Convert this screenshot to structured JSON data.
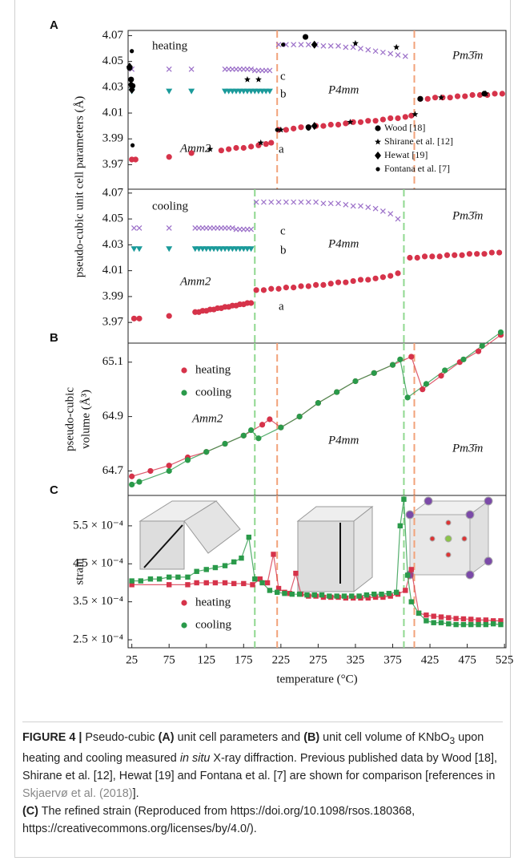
{
  "chart_data": [
    {
      "type": "scatter",
      "panel": "A",
      "ylabel": "pseudo-cubic unit cell parameters (Å)",
      "xlim": [
        20,
        527
      ],
      "ylim": [
        3.951,
        4.074
      ],
      "yticks": [
        3.97,
        3.99,
        4.01,
        4.03,
        4.05,
        4.07
      ],
      "annotations": [
        "heating",
        "Amm2",
        "P4mm",
        "Pm3̄m",
        "c",
        "b",
        "a"
      ],
      "legend": "lower right",
      "vlines": [
        {
          "x": 220,
          "color": "#f2a27a"
        },
        {
          "x": 404,
          "color": "#f2a27a"
        }
      ],
      "series": [
        {
          "marker": "circle",
          "color": "#d6334a",
          "x": [
            25,
            30,
            75,
            105,
            145,
            155,
            165,
            175,
            185,
            195,
            205,
            212,
            222,
            232,
            242,
            252,
            262,
            272,
            282,
            292,
            302,
            312,
            322,
            332,
            342,
            352,
            362,
            372,
            382,
            392,
            400,
            412,
            422,
            432,
            442,
            452,
            462,
            472,
            482,
            492,
            502,
            512,
            522
          ],
          "values": [
            3.974,
            3.974,
            3.976,
            3.979,
            3.981,
            3.982,
            3.983,
            3.983,
            3.984,
            3.985,
            3.986,
            3.987,
            3.997,
            3.997,
            3.998,
            3.999,
            3.999,
            4.0,
            4.0,
            4.001,
            4.001,
            4.002,
            4.003,
            4.003,
            4.004,
            4.004,
            4.005,
            4.006,
            4.006,
            4.007,
            4.008,
            4.021,
            4.021,
            4.022,
            4.022,
            4.022,
            4.023,
            4.023,
            4.024,
            4.024,
            4.024,
            4.025,
            4.025
          ]
        },
        {
          "marker": "triangle",
          "color": "#1a9a9a",
          "x": [
            25,
            75,
            105,
            150,
            155,
            160,
            165,
            170,
            175,
            180,
            185,
            190,
            195,
            200,
            205,
            210
          ],
          "values": [
            4.027,
            4.027,
            4.027,
            4.027,
            4.027,
            4.027,
            4.027,
            4.027,
            4.027,
            4.027,
            4.027,
            4.027,
            4.027,
            4.027,
            4.027,
            4.027
          ]
        },
        {
          "marker": "cross",
          "color": "#9b6fc8",
          "x": [
            25,
            75,
            105,
            150,
            155,
            160,
            165,
            170,
            175,
            180,
            185,
            190,
            195,
            200,
            205,
            210,
            222,
            232,
            242,
            252,
            262,
            272,
            282,
            292,
            302,
            312,
            322,
            332,
            342,
            352,
            362,
            372,
            382,
            392
          ],
          "values": [
            4.044,
            4.044,
            4.044,
            4.044,
            4.044,
            4.044,
            4.044,
            4.044,
            4.044,
            4.044,
            4.044,
            4.043,
            4.043,
            4.043,
            4.043,
            4.043,
            4.063,
            4.063,
            4.063,
            4.063,
            4.063,
            4.063,
            4.062,
            4.062,
            4.062,
            4.061,
            4.061,
            4.06,
            4.059,
            4.058,
            4.057,
            4.056,
            4.055,
            4.054
          ]
        },
        {
          "name": "Wood [18]",
          "marker": "circle",
          "color": "#000000",
          "x": [
            22,
            24,
            26,
            258,
            262,
            412,
            498
          ],
          "values": [
            4.045,
            4.036,
            4.031,
            4.069,
            3.999,
            4.021,
            4.025
          ]
        },
        {
          "name": "Shirane et al. [12]",
          "marker": "star",
          "color": "#000000",
          "x": [
            130,
            180,
            195,
            198,
            225,
            318,
            325,
            380,
            405,
            440,
            500
          ],
          "values": [
            3.982,
            4.036,
            4.036,
            3.987,
            3.997,
            4.003,
            4.064,
            4.061,
            4.009,
            4.022,
            4.025
          ]
        },
        {
          "name": "Hewat [19]",
          "marker": "diamond",
          "color": "#000000",
          "x": [
            22,
            24,
            25,
            270,
            270
          ],
          "values": [
            4.046,
            4.032,
            4.028,
            4.063,
            4.0
          ]
        },
        {
          "name": "Fontana et al. [7]",
          "marker": "dot",
          "color": "#000000",
          "x": [
            25,
            26,
            220,
            228,
            262
          ],
          "values": [
            4.058,
            3.985,
            3.997,
            4.063,
            3.998
          ]
        }
      ]
    },
    {
      "type": "scatter",
      "xlim": [
        20,
        527
      ],
      "ylim": [
        3.954,
        4.073
      ],
      "yticks": [
        3.97,
        3.99,
        4.01,
        4.03,
        4.05,
        4.07
      ],
      "annotations": [
        "cooling",
        "Amm2",
        "P4mm",
        "Pm3̄m",
        "c",
        "b",
        "a"
      ],
      "vlines": [
        {
          "x": 190,
          "color": "#8fd88f"
        },
        {
          "x": 390,
          "color": "#8fd88f"
        }
      ],
      "series": [
        {
          "marker": "circle",
          "color": "#d6334a",
          "x": [
            28,
            35,
            75,
            110,
            115,
            120,
            125,
            130,
            135,
            140,
            145,
            150,
            155,
            160,
            165,
            170,
            175,
            180,
            185,
            192,
            202,
            212,
            222,
            232,
            242,
            252,
            262,
            272,
            282,
            292,
            302,
            312,
            322,
            332,
            342,
            352,
            362,
            372,
            382,
            398,
            408,
            418,
            428,
            438,
            448,
            458,
            468,
            478,
            488,
            498,
            508,
            518
          ],
          "values": [
            3.973,
            3.973,
            3.975,
            3.978,
            3.978,
            3.979,
            3.979,
            3.98,
            3.98,
            3.981,
            3.981,
            3.982,
            3.982,
            3.983,
            3.983,
            3.984,
            3.984,
            3.985,
            3.985,
            3.995,
            3.995,
            3.996,
            3.996,
            3.997,
            3.997,
            3.998,
            3.998,
            3.999,
            3.999,
            4.0,
            4.001,
            4.001,
            4.002,
            4.003,
            4.003,
            4.004,
            4.005,
            4.006,
            4.008,
            4.02,
            4.02,
            4.021,
            4.021,
            4.021,
            4.022,
            4.022,
            4.022,
            4.023,
            4.023,
            4.023,
            4.024,
            4.024
          ]
        },
        {
          "marker": "triangle",
          "color": "#1a9a9a",
          "x": [
            28,
            35,
            75,
            110,
            115,
            120,
            125,
            130,
            135,
            140,
            145,
            150,
            155,
            160,
            165,
            170,
            175,
            180,
            185
          ],
          "values": [
            4.027,
            4.027,
            4.027,
            4.027,
            4.027,
            4.027,
            4.027,
            4.027,
            4.027,
            4.027,
            4.027,
            4.027,
            4.027,
            4.027,
            4.027,
            4.027,
            4.027,
            4.027,
            4.027
          ]
        },
        {
          "marker": "cross",
          "color": "#9b6fc8",
          "x": [
            28,
            35,
            75,
            110,
            115,
            120,
            125,
            130,
            135,
            140,
            145,
            150,
            155,
            160,
            165,
            170,
            175,
            180,
            185,
            192,
            202,
            212,
            222,
            232,
            242,
            252,
            262,
            272,
            282,
            292,
            302,
            312,
            322,
            332,
            342,
            352,
            362,
            372,
            382
          ],
          "values": [
            4.043,
            4.043,
            4.043,
            4.043,
            4.043,
            4.043,
            4.043,
            4.043,
            4.043,
            4.043,
            4.043,
            4.043,
            4.043,
            4.043,
            4.042,
            4.042,
            4.042,
            4.042,
            4.042,
            4.063,
            4.063,
            4.063,
            4.063,
            4.063,
            4.063,
            4.063,
            4.063,
            4.063,
            4.062,
            4.062,
            4.062,
            4.061,
            4.06,
            4.06,
            4.059,
            4.058,
            4.056,
            4.054,
            4.05
          ]
        }
      ]
    },
    {
      "type": "line",
      "panel": "B",
      "ylabel": [
        "pseudo-cubic",
        "volume (Å³)"
      ],
      "xlim": [
        20,
        527
      ],
      "ylim": [
        64.61,
        65.17
      ],
      "yticks": [
        64.7,
        64.9,
        65.1
      ],
      "annotations": [
        "Amm2",
        "P4mm",
        "Pm3̄m"
      ],
      "legend": "upper left",
      "vlines": [
        {
          "x": 190,
          "color": "#8fd88f"
        },
        {
          "x": 220,
          "color": "#f2a27a"
        },
        {
          "x": 390,
          "color": "#8fd88f"
        },
        {
          "x": 404,
          "color": "#f2a27a"
        }
      ],
      "series": [
        {
          "name": "heating",
          "marker": "circle",
          "color": "#d6334a",
          "x": [
            25,
            50,
            75,
            100,
            125,
            150,
            175,
            200,
            210,
            225,
            250,
            275,
            300,
            325,
            350,
            375,
            400,
            415,
            440,
            465,
            490,
            520
          ],
          "values": [
            64.68,
            64.7,
            64.72,
            64.75,
            64.77,
            64.8,
            64.83,
            64.87,
            64.89,
            64.86,
            64.9,
            64.95,
            64.99,
            65.03,
            65.06,
            65.09,
            65.12,
            65.0,
            65.05,
            65.1,
            65.14,
            65.2
          ]
        },
        {
          "name": "cooling",
          "marker": "circle",
          "color": "#2a9a4a",
          "x": [
            25,
            35,
            75,
            100,
            125,
            150,
            175,
            185,
            195,
            225,
            250,
            275,
            300,
            325,
            350,
            375,
            385,
            395,
            420,
            445,
            470,
            495,
            520
          ],
          "values": [
            64.65,
            64.66,
            64.7,
            64.74,
            64.77,
            64.8,
            64.83,
            64.85,
            64.82,
            64.86,
            64.9,
            64.95,
            64.99,
            65.03,
            65.06,
            65.09,
            65.11,
            64.97,
            65.02,
            65.07,
            65.11,
            65.16,
            65.21
          ]
        }
      ]
    },
    {
      "type": "line",
      "panel": "C",
      "ylabel": "strain",
      "xlabel": "temperature (°C)",
      "xlim": [
        20,
        527
      ],
      "ylim": [
        0.000229,
        0.00063
      ],
      "yticks": [
        {
          "value": 0.00025,
          "label": "2.5 × 10⁻⁴"
        },
        {
          "value": 0.00035,
          "label": "3.5 × 10⁻⁴"
        },
        {
          "value": 0.00045,
          "label": "4.5 × 10⁻⁴"
        },
        {
          "value": 0.00055,
          "label": "5.5 × 10⁻⁴"
        }
      ],
      "xticks": [
        25,
        75,
        125,
        175,
        225,
        275,
        325,
        375,
        425,
        475,
        525
      ],
      "legend": "lower left",
      "vlines": [
        {
          "x": 190,
          "color": "#8fd88f"
        },
        {
          "x": 220,
          "color": "#f2a27a"
        },
        {
          "x": 390,
          "color": "#8fd88f"
        },
        {
          "x": 404,
          "color": "#f2a27a"
        }
      ],
      "series": [
        {
          "name": "heating",
          "marker": "square",
          "color": "#d6334a",
          "x": [
            25,
            75,
            100,
            112,
            125,
            137,
            150,
            162,
            175,
            187,
            197,
            207,
            215,
            222,
            230,
            237,
            245,
            252,
            262,
            272,
            282,
            292,
            302,
            312,
            322,
            332,
            342,
            352,
            362,
            372,
            382,
            392,
            400,
            410,
            420,
            430,
            440,
            450,
            460,
            470,
            480,
            490,
            500,
            510,
            520
          ],
          "values": [
            0.000395,
            0.000395,
            0.000395,
            0.0004,
            0.0004,
            0.0004,
            0.0004,
            0.000398,
            0.000398,
            0.000395,
            0.00041,
            0.0004,
            0.000475,
            0.000385,
            0.000375,
            0.000372,
            0.000425,
            0.00037,
            0.000365,
            0.000365,
            0.000362,
            0.000362,
            0.000362,
            0.00036,
            0.00036,
            0.00036,
            0.00036,
            0.000362,
            0.000362,
            0.000365,
            0.00037,
            0.00038,
            0.000435,
            0.00032,
            0.000315,
            0.000312,
            0.00031,
            0.000308,
            0.000306,
            0.000305,
            0.000304,
            0.000302,
            0.000302,
            0.0003,
            0.0003
          ]
        },
        {
          "name": "cooling",
          "marker": "square",
          "color": "#2a9a4a",
          "x": [
            25,
            37,
            50,
            62,
            75,
            87,
            100,
            112,
            125,
            137,
            150,
            162,
            172,
            182,
            190,
            200,
            210,
            220,
            230,
            240,
            250,
            260,
            270,
            280,
            290,
            300,
            310,
            320,
            330,
            340,
            350,
            360,
            370,
            380,
            385,
            390,
            395,
            400,
            410,
            420,
            430,
            440,
            450,
            460,
            470,
            480,
            490,
            500,
            510,
            520
          ],
          "values": [
            0.000405,
            0.000405,
            0.00041,
            0.00041,
            0.000415,
            0.000415,
            0.000415,
            0.00043,
            0.000435,
            0.00044,
            0.000445,
            0.000455,
            0.000465,
            0.00052,
            0.00041,
            0.0004,
            0.00038,
            0.000375,
            0.000372,
            0.00037,
            0.00037,
            0.000368,
            0.000368,
            0.000368,
            0.000365,
            0.000365,
            0.000365,
            0.000365,
            0.000365,
            0.000368,
            0.00037,
            0.00037,
            0.000372,
            0.000375,
            0.00055,
            0.00062,
            0.00042,
            0.00035,
            0.00032,
            0.0003,
            0.000295,
            0.000295,
            0.000292,
            0.00029,
            0.00029,
            0.00029,
            0.00029,
            0.00029,
            0.000292,
            0.00029
          ]
        }
      ]
    }
  ],
  "caption": [
    "FIGURE 4 |",
    "Pseudo-cubic",
    "(A)",
    "unit cell parameters and",
    "(B)",
    "unit cell volume of KNbO",
    "3",
    "upon heating and cooling measured",
    "in situ",
    "X-ray diffraction. Previous published data by Wood [18], Shirane et al. [12], Hewat [19] and Fontana et al. [7] are shown for comparison [references in",
    "Skjaervø et al. (2018)",
    "].",
    "(C)",
    "The refined strain (Reproduced from https://doi.org/10.1098/rsos.180368, https://creativecommons.org/licenses/by/4.0/)."
  ]
}
